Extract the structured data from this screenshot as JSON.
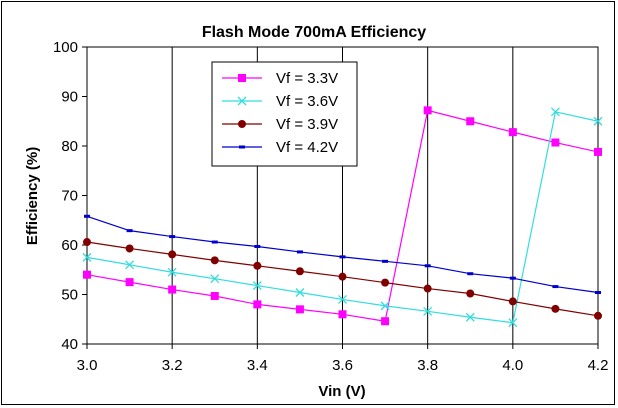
{
  "chart_data": {
    "type": "line",
    "title": "Flash Mode 700mA Efficiency",
    "xlabel": "Vin (V)",
    "ylabel": "Efficiency (%)",
    "xlim": [
      3.0,
      4.2
    ],
    "ylim": [
      40,
      100
    ],
    "x_ticks": [
      "3.0",
      "3.2",
      "3.4",
      "3.6",
      "3.8",
      "4.0",
      "4.2"
    ],
    "y_ticks": [
      "40",
      "50",
      "60",
      "70",
      "80",
      "90",
      "100"
    ],
    "grid": "vertical",
    "legend_position": "top-center",
    "series": [
      {
        "name": "Vf = 3.3V",
        "color": "#ff00ff",
        "marker": "square",
        "points": [
          [
            3.0,
            54.0
          ],
          [
            3.1,
            52.5
          ],
          [
            3.2,
            51.0
          ],
          [
            3.3,
            49.7
          ],
          [
            3.4,
            48.0
          ],
          [
            3.5,
            47.0
          ],
          [
            3.6,
            46.0
          ],
          [
            3.7,
            44.6
          ],
          [
            3.8,
            87.2
          ],
          [
            3.9,
            85.0
          ],
          [
            4.0,
            82.8
          ],
          [
            4.1,
            80.7
          ],
          [
            4.2,
            78.8
          ]
        ]
      },
      {
        "name": "Vf = 3.6V",
        "color": "#33dddd",
        "marker": "x",
        "points": [
          [
            3.0,
            57.5
          ],
          [
            3.1,
            56.0
          ],
          [
            3.2,
            54.5
          ],
          [
            3.3,
            53.2
          ],
          [
            3.4,
            51.8
          ],
          [
            3.5,
            50.4
          ],
          [
            3.6,
            49.0
          ],
          [
            3.7,
            47.7
          ],
          [
            3.8,
            46.6
          ],
          [
            3.9,
            45.4
          ],
          [
            4.0,
            44.3
          ],
          [
            4.1,
            86.9
          ],
          [
            4.2,
            85.0
          ]
        ]
      },
      {
        "name": "Vf = 3.9V",
        "color": "#800000",
        "marker": "circle",
        "points": [
          [
            3.0,
            60.6
          ],
          [
            3.1,
            59.3
          ],
          [
            3.2,
            58.1
          ],
          [
            3.3,
            56.9
          ],
          [
            3.4,
            55.8
          ],
          [
            3.5,
            54.7
          ],
          [
            3.6,
            53.6
          ],
          [
            3.7,
            52.4
          ],
          [
            3.8,
            51.2
          ],
          [
            3.9,
            50.2
          ],
          [
            4.0,
            48.6
          ],
          [
            4.1,
            47.1
          ],
          [
            4.2,
            45.7
          ]
        ]
      },
      {
        "name": "Vf = 4.2V",
        "color": "#0000cc",
        "marker": "dash",
        "points": [
          [
            3.0,
            65.8
          ],
          [
            3.1,
            62.9
          ],
          [
            3.2,
            61.7
          ],
          [
            3.3,
            60.6
          ],
          [
            3.4,
            59.7
          ],
          [
            3.5,
            58.6
          ],
          [
            3.6,
            57.6
          ],
          [
            3.7,
            56.7
          ],
          [
            3.8,
            55.8
          ],
          [
            3.9,
            54.2
          ],
          [
            4.0,
            53.3
          ],
          [
            4.1,
            51.6
          ],
          [
            4.2,
            50.4
          ]
        ]
      }
    ]
  }
}
